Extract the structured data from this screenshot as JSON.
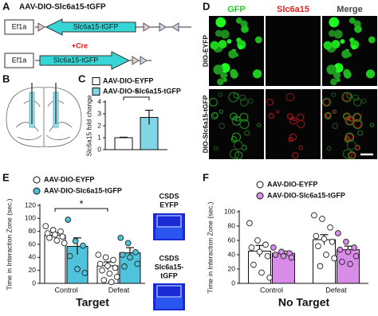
{
  "panels": {
    "labels": [
      "A",
      "B",
      "C",
      "D",
      "E",
      "F"
    ]
  },
  "diagram": {
    "title": "AAV-DIO-Slc6a15-tGFP",
    "promoter": "Ef1a",
    "insert": "Slc6a15-tGFP",
    "cre": "+Cre",
    "promoter2": "Ef1a",
    "insert2": "Slc6a15-tGFP"
  },
  "images": {
    "columns": [
      "GFP",
      "Slc6a15",
      "Merge"
    ],
    "column_colors": [
      "#22cc22",
      "#dd2222",
      "#444444"
    ],
    "rows": [
      "DIO-EYFP",
      "DIO-Slc6a15-tGFP"
    ]
  },
  "heatmaps": {
    "labels": [
      [
        "CSDS",
        "EYFP"
      ],
      [
        "CSDS",
        "Slc6a15-",
        "tGFP"
      ]
    ]
  },
  "chart_data": [
    {
      "type": "bar",
      "ylabel": "Slc6a15 fold change",
      "ylim": [
        0,
        4
      ],
      "yticks": [
        0,
        1,
        2,
        3,
        4
      ],
      "annotation": "*",
      "series": [
        {
          "name": "AAV-DIO-EYFP",
          "color": "#ffffff",
          "values": [
            1.0
          ],
          "errors": [
            0.04
          ]
        },
        {
          "name": "AAV-DIO-Slc6a15-tGFP",
          "color": "#7fd6e6",
          "values": [
            2.7
          ],
          "errors": [
            0.6
          ]
        }
      ]
    },
    {
      "type": "bar",
      "ylabel": "Time in Interaction Zone (sec.)",
      "xlabel": "Target",
      "categories": [
        "Control",
        "Defeat"
      ],
      "ylim": [
        0,
        120
      ],
      "yticks": [
        0,
        20,
        40,
        60,
        80,
        100,
        120
      ],
      "annotation": "*",
      "series": [
        {
          "name": "AAV-DIO-EYFP",
          "color": "#ffffff",
          "values": [
            74,
            27
          ],
          "errors": [
            4,
            6
          ],
          "points": [
            [
              88,
              82,
              80,
              77,
              75,
              72,
              70,
              66,
              62
            ],
            [
              44,
              40,
              36,
              30,
              27,
              24,
              20,
              15,
              10,
              5,
              2
            ]
          ]
        },
        {
          "name": "AAV-DIO-Slc6a15-tGFP",
          "color": "#4fc3dc",
          "values": [
            57,
            47
          ],
          "errors": [
            13,
            8
          ],
          "points": [
            [
              98,
              65,
              58,
              42,
              22,
              16
            ],
            [
              70,
              62,
              48,
              44,
              40,
              30,
              26
            ]
          ]
        }
      ]
    },
    {
      "type": "bar",
      "ylabel": "Time in Interaction Zone (sec.)",
      "xlabel": "No Target",
      "categories": [
        "Control",
        "Defeat"
      ],
      "ylim": [
        0,
        100
      ],
      "yticks": [
        0,
        20,
        40,
        60,
        80,
        100
      ],
      "series": [
        {
          "name": "AAV-DIO-EYFP",
          "color": "#ffffff",
          "values": [
            45,
            61
          ],
          "errors": [
            8,
            7
          ],
          "points": [
            [
              84,
              60,
              54,
              50,
              44,
              38,
              26,
              15,
              8
            ],
            [
              95,
              90,
              78,
              66,
              62,
              58,
              52,
              40,
              35,
              24
            ]
          ]
        },
        {
          "name": "AAV-DIO-Slc6a15-tGFP",
          "color": "#d98be8",
          "values": [
            42,
            47
          ],
          "errors": [
            3,
            5
          ],
          "points": [
            [
              50,
              44,
              42,
              40,
              38,
              36
            ],
            [
              70,
              58,
              50,
              47,
              44,
              38,
              30,
              27
            ]
          ]
        }
      ]
    }
  ]
}
